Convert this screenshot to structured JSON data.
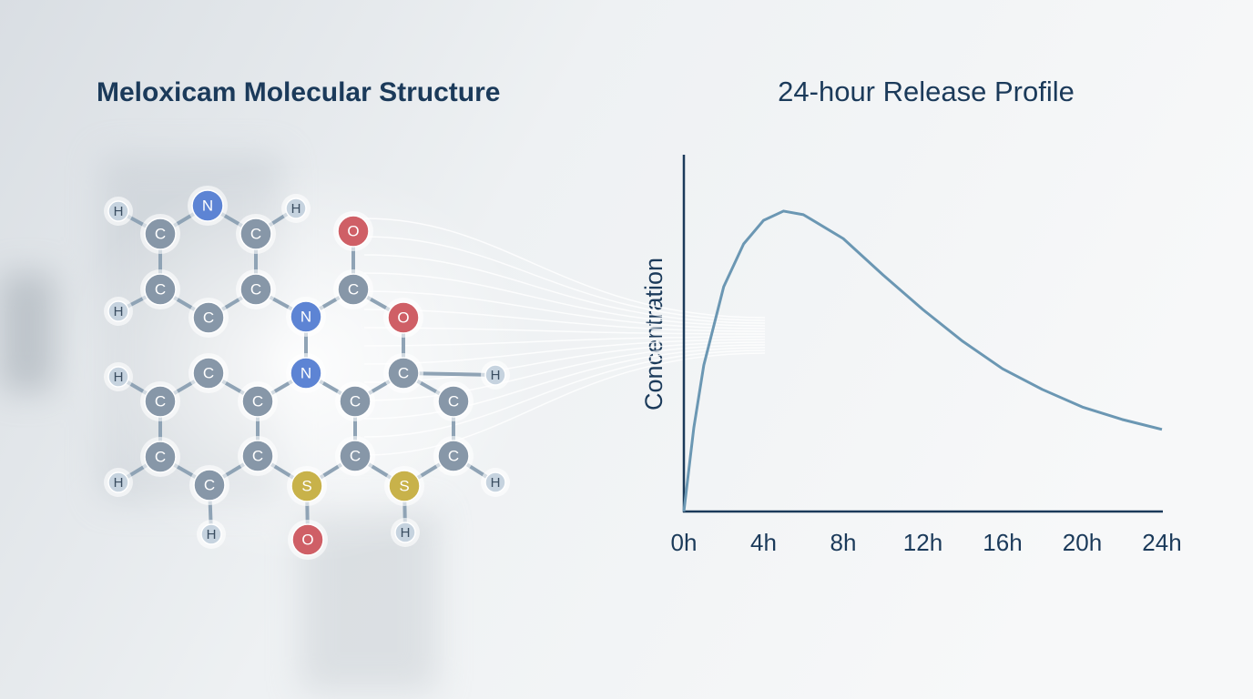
{
  "molecule": {
    "title": "Meloxicam Molecular Structure",
    "atoms": [
      "H",
      "N",
      "H",
      "C",
      "C",
      "O",
      "C",
      "C",
      "C",
      "H",
      "C",
      "N",
      "O",
      "H",
      "C",
      "N",
      "C",
      "H",
      "C",
      "C",
      "C",
      "C",
      "C",
      "C",
      "C",
      "C",
      "H",
      "C",
      "S",
      "S",
      "H",
      "H",
      "O",
      "H"
    ]
  },
  "chart_data": {
    "type": "line",
    "title": "24-hour Release Profile",
    "y_label": "Concentration",
    "x": [
      0,
      0.5,
      1,
      2,
      3,
      4,
      5,
      6,
      8,
      10,
      12,
      14,
      16,
      18,
      20,
      22,
      24
    ],
    "series": [
      {
        "color": "#6b97b3",
        "values": [
          0,
          23.5,
          41,
          63,
          75,
          81.6,
          84.2,
          83.2,
          76.5,
          66.3,
          56.6,
          47.7,
          40,
          34.2,
          29.3,
          25.8,
          23
        ]
      }
    ],
    "xlim": [
      0,
      24
    ],
    "xticks": [
      {
        "value": 0,
        "label": "0h"
      },
      {
        "value": 4,
        "label": "4h"
      },
      {
        "value": 8,
        "label": "8h"
      },
      {
        "value": 12,
        "label": "12h"
      },
      {
        "value": 16,
        "label": "16h"
      },
      {
        "value": 20,
        "label": "20h"
      },
      {
        "value": 24,
        "label": "24h"
      }
    ],
    "ylim": [
      0,
      100
    ]
  }
}
